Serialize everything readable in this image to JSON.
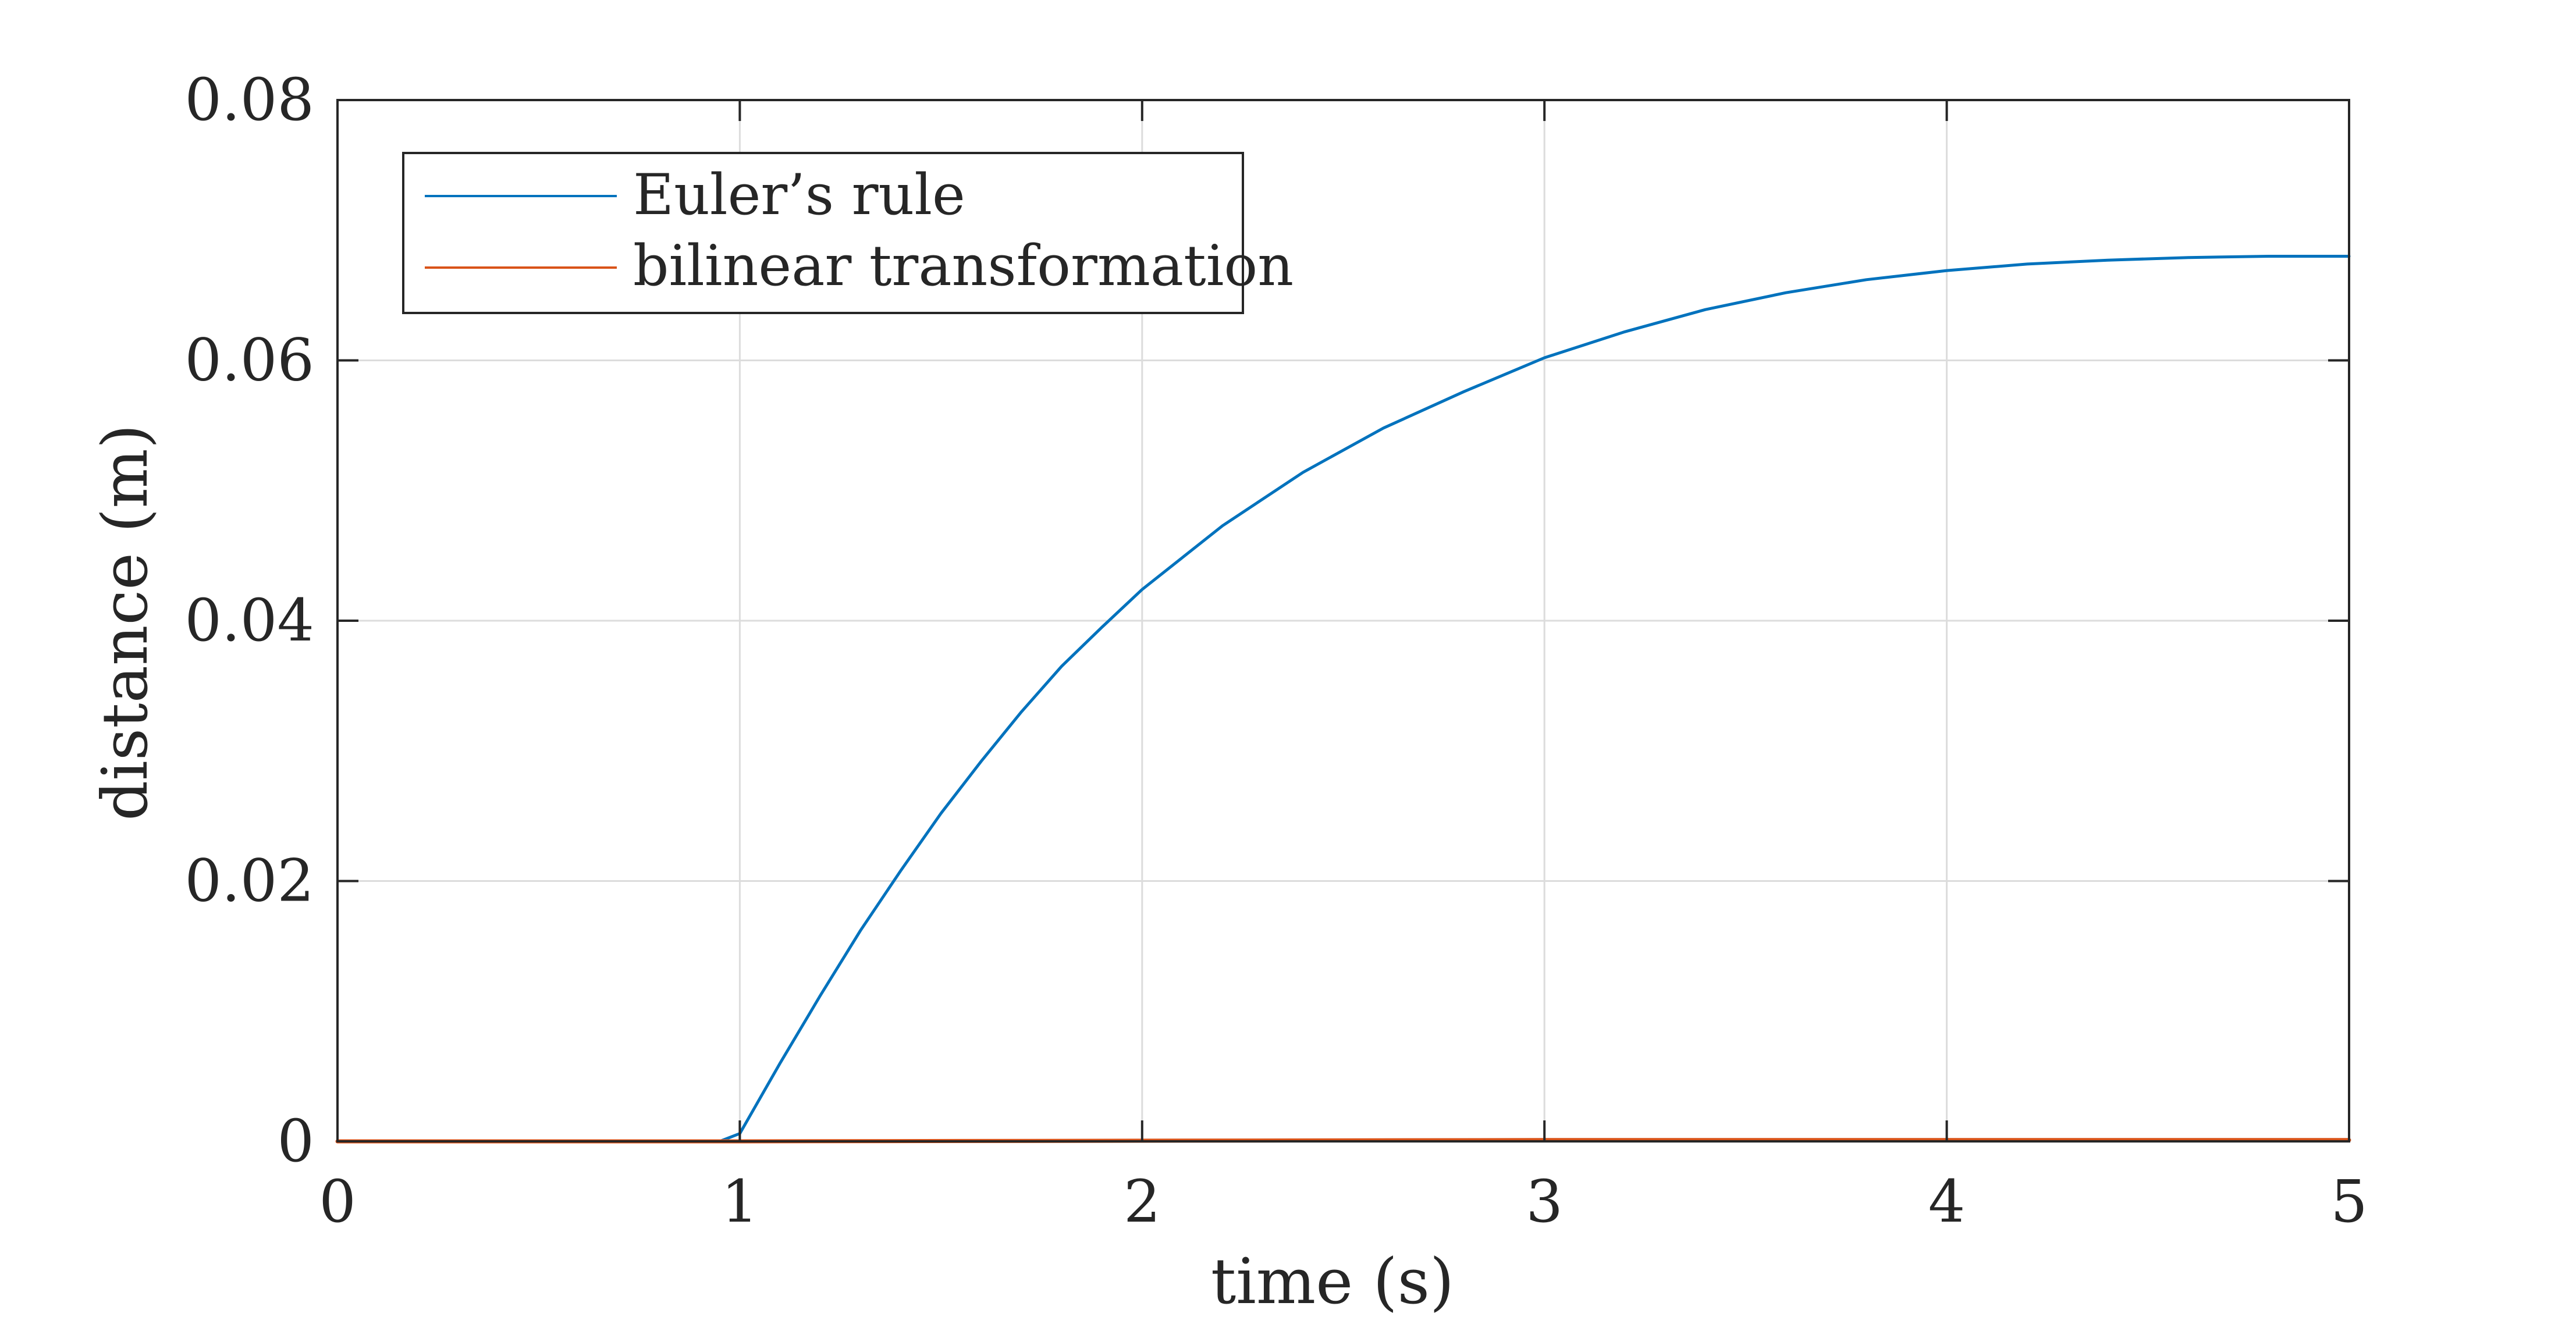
{
  "chart_data": {
    "type": "line",
    "title": "",
    "xlabel": "time (s)",
    "ylabel": "distance (m)",
    "xlim": [
      0,
      5
    ],
    "ylim": [
      0,
      0.08
    ],
    "xticks": [
      0,
      1,
      2,
      3,
      4,
      5
    ],
    "yticks": [
      0,
      0.02,
      0.04,
      0.06,
      0.08
    ],
    "xtick_labels": [
      "0",
      "1",
      "2",
      "3",
      "4",
      "5"
    ],
    "ytick_labels": [
      "0",
      "0.02",
      "0.04",
      "0.06",
      "0.08"
    ],
    "grid": true,
    "legend_position": "top-left",
    "series": [
      {
        "name": "Euler’s rule",
        "color": "#0072BD",
        "x": [
          0,
          0.95,
          1.0,
          1.1,
          1.2,
          1.3,
          1.4,
          1.5,
          1.6,
          1.7,
          1.8,
          1.9,
          2.0,
          2.2,
          2.4,
          2.6,
          2.8,
          3.0,
          3.2,
          3.4,
          3.6,
          3.8,
          4.0,
          4.2,
          4.4,
          4.6,
          4.8,
          5.0
        ],
        "y": [
          0,
          0,
          0.0006,
          0.006,
          0.0112,
          0.0162,
          0.0208,
          0.0252,
          0.0292,
          0.033,
          0.0365,
          0.0395,
          0.0424,
          0.0473,
          0.0514,
          0.0548,
          0.0576,
          0.0602,
          0.0622,
          0.0639,
          0.0652,
          0.0662,
          0.0669,
          0.0674,
          0.0677,
          0.0679,
          0.068,
          0.068
        ]
      },
      {
        "name": "bilinear transformation",
        "color": "#D95319",
        "x": [
          0,
          1.0,
          2.0,
          3.0,
          4.0,
          5.0
        ],
        "y": [
          0,
          0,
          5e-05,
          0.0001,
          0.0001,
          0.0001
        ]
      }
    ]
  }
}
